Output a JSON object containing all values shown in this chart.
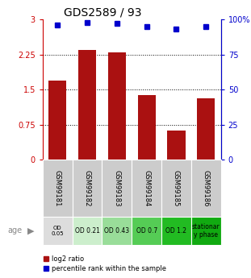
{
  "title": "GDS2589 / 93",
  "samples": [
    "GSM99181",
    "GSM99182",
    "GSM99183",
    "GSM99184",
    "GSM99185",
    "GSM99186"
  ],
  "log2_ratio": [
    1.7,
    2.35,
    2.3,
    1.38,
    0.62,
    1.32
  ],
  "percentile_rank": [
    96,
    98,
    97,
    95,
    93,
    95
  ],
  "ylim_left": [
    0,
    3
  ],
  "ylim_right": [
    0,
    100
  ],
  "yticks_left": [
    0,
    0.75,
    1.5,
    2.25,
    3
  ],
  "ytick_labels_left": [
    "0",
    "0.75",
    "1.5",
    "2.25",
    "3"
  ],
  "yticks_right": [
    0,
    25,
    50,
    75,
    100
  ],
  "ytick_labels_right": [
    "0",
    "25",
    "50",
    "75",
    "100%"
  ],
  "bar_color": "#aa1111",
  "dot_color": "#0000cc",
  "bar_width": 0.6,
  "age_labels": [
    "OD\n0.05",
    "OD 0.21",
    "OD 0.43",
    "OD 0.7",
    "OD 1.2",
    "stationar\ny phase"
  ],
  "age_bg_colors": [
    "#dddddd",
    "#cceecc",
    "#99dd99",
    "#55cc55",
    "#22bb22",
    "#11aa11"
  ],
  "legend_items": [
    "log2 ratio",
    "percentile rank within the sample"
  ],
  "legend_colors": [
    "#aa1111",
    "#0000cc"
  ],
  "red_color": "#cc0000",
  "blue_color": "#0000cc",
  "gray_color": "#888888",
  "sample_bg_color": "#cccccc",
  "grid_yticks": [
    0.75,
    1.5,
    2.25
  ]
}
